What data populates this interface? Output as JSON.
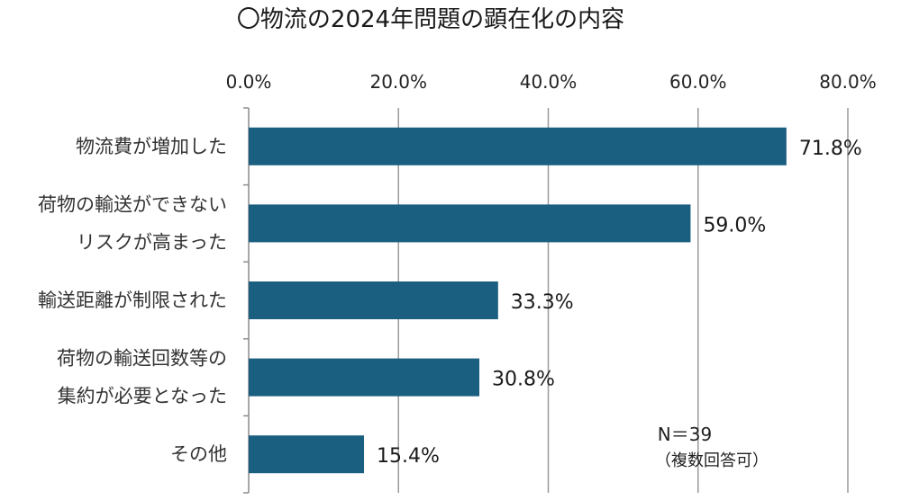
{
  "chart_data": {
    "type": "bar",
    "orientation": "horizontal",
    "title": "〇物流の2024年問題の顕在化の内容",
    "categories": [
      [
        "物流費が増加した"
      ],
      [
        "荷物の輸送ができない",
        "リスクが高まった"
      ],
      [
        "輸送距離が制限された"
      ],
      [
        "荷物の輸送回数等の",
        "集約が必要となった"
      ],
      [
        "その他"
      ]
    ],
    "values": [
      71.8,
      59.0,
      33.3,
      30.8,
      15.4
    ],
    "value_labels": [
      "71.8%",
      "59.0%",
      "33.3%",
      "30.8%",
      "15.4%"
    ],
    "xlim": [
      0,
      80
    ],
    "x_ticks": [
      "0.0%",
      "20.0%",
      "40.0%",
      "60.0%",
      "80.0%"
    ],
    "x_tick_values": [
      0,
      20,
      40,
      60,
      80
    ],
    "grid": true,
    "bar_color": "#1a5e80",
    "notes": [
      "N＝39",
      "（複数回答可）"
    ]
  }
}
